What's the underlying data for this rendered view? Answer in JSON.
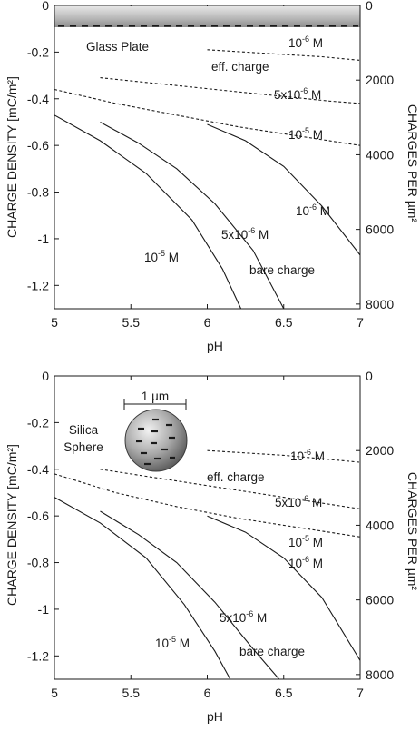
{
  "chart_data": [
    {
      "type": "line",
      "inset": {
        "text": "Glass Plate"
      },
      "xlabel": "pH",
      "ylabel": "CHARGE DENSITY [mC/m²]",
      "y2label": "CHARGES PER µm²",
      "xlim": [
        5,
        7
      ],
      "ylim": [
        -1.3,
        0
      ],
      "y2lim": [
        0,
        8125
      ],
      "xticks": [
        "5",
        "5.5",
        "6",
        "6.5",
        "7"
      ],
      "yticks": [
        "0",
        "-0.2",
        "-0.4",
        "-0.6",
        "-0.8",
        "-1",
        "-1.2"
      ],
      "y2ticks": [
        "0",
        "2000",
        "4000",
        "6000",
        "8000"
      ],
      "series": [
        {
          "name": "10-6 M",
          "group": "eff. charge",
          "style": "dashed",
          "x": [
            6.0,
            6.25,
            6.5,
            6.75,
            7.0
          ],
          "y": [
            -0.19,
            -0.2,
            -0.21,
            -0.22,
            -0.235
          ]
        },
        {
          "name": "5x10-6 M",
          "group": "eff. charge",
          "style": "dashed",
          "x": [
            5.3,
            5.6,
            5.9,
            6.2,
            6.5,
            6.8,
            7.0
          ],
          "y": [
            -0.31,
            -0.33,
            -0.35,
            -0.37,
            -0.39,
            -0.41,
            -0.42
          ]
        },
        {
          "name": "10-5 M",
          "group": "eff. charge",
          "style": "dashed",
          "x": [
            5.0,
            5.4,
            5.8,
            6.2,
            6.6,
            7.0
          ],
          "y": [
            -0.36,
            -0.42,
            -0.47,
            -0.52,
            -0.56,
            -0.6
          ]
        },
        {
          "name": "10-6 M",
          "group": "bare charge",
          "style": "solid",
          "x": [
            6.0,
            6.25,
            6.5,
            6.75,
            7.0
          ],
          "y": [
            -0.51,
            -0.58,
            -0.69,
            -0.86,
            -1.07
          ]
        },
        {
          "name": "5x10-6 M",
          "group": "bare charge",
          "style": "solid",
          "x": [
            5.3,
            5.55,
            5.8,
            6.05,
            6.3,
            6.5
          ],
          "y": [
            -0.5,
            -0.59,
            -0.7,
            -0.85,
            -1.05,
            -1.3
          ]
        },
        {
          "name": "10-5 M",
          "group": "bare charge",
          "style": "solid",
          "x": [
            5.0,
            5.3,
            5.6,
            5.9,
            6.1,
            6.22
          ],
          "y": [
            -0.47,
            -0.58,
            -0.72,
            -0.92,
            -1.13,
            -1.3
          ]
        }
      ],
      "labels": {
        "eff_charge": "eff. charge",
        "bare_charge": "bare charge",
        "c1_base": "10",
        "c1_exp": "-6",
        "c1_unit": " M",
        "c2_base": "5x10",
        "c2_exp": "-6",
        "c2_unit": " M",
        "c3_base": "10",
        "c3_exp": "-5",
        "c3_unit": " M"
      }
    },
    {
      "type": "line",
      "inset": {
        "text_line1": "Silica",
        "text_line2": "Sphere",
        "scale_label": "1 µm"
      },
      "xlabel": "pH",
      "ylabel": "CHARGE DENSITY [mC/m²]",
      "y2label": "CHARGES PER µm²",
      "xlim": [
        5,
        7
      ],
      "ylim": [
        -1.3,
        0
      ],
      "y2lim": [
        0,
        8125
      ],
      "xticks": [
        "5",
        "5.5",
        "6",
        "6.5",
        "7"
      ],
      "yticks": [
        "0",
        "-0.2",
        "-0.4",
        "-0.6",
        "-0.8",
        "-1",
        "-1.2"
      ],
      "y2ticks": [
        "0",
        "2000",
        "4000",
        "6000",
        "8000"
      ],
      "series": [
        {
          "name": "10-6 M",
          "group": "eff. charge",
          "style": "dashed",
          "x": [
            6.0,
            6.25,
            6.5,
            6.75,
            7.0
          ],
          "y": [
            -0.32,
            -0.33,
            -0.34,
            -0.355,
            -0.37
          ]
        },
        {
          "name": "5x10-6 M",
          "group": "eff. charge",
          "style": "dashed",
          "x": [
            5.3,
            5.6,
            5.9,
            6.2,
            6.5,
            6.8,
            7.0
          ],
          "y": [
            -0.4,
            -0.43,
            -0.46,
            -0.49,
            -0.52,
            -0.55,
            -0.57
          ]
        },
        {
          "name": "10-5 M",
          "group": "eff. charge",
          "style": "dashed",
          "x": [
            5.0,
            5.4,
            5.8,
            6.2,
            6.6,
            7.0
          ],
          "y": [
            -0.42,
            -0.5,
            -0.56,
            -0.61,
            -0.65,
            -0.69
          ]
        },
        {
          "name": "10-6 M",
          "group": "bare charge",
          "style": "solid",
          "x": [
            6.0,
            6.25,
            6.5,
            6.75,
            7.0
          ],
          "y": [
            -0.6,
            -0.67,
            -0.78,
            -0.95,
            -1.22
          ]
        },
        {
          "name": "5x10-6 M",
          "group": "bare charge",
          "style": "solid",
          "x": [
            5.3,
            5.55,
            5.8,
            6.05,
            6.3,
            6.47
          ],
          "y": [
            -0.58,
            -0.68,
            -0.8,
            -0.97,
            -1.17,
            -1.3
          ]
        },
        {
          "name": "10-5 M",
          "group": "bare charge",
          "style": "solid",
          "x": [
            5.0,
            5.3,
            5.6,
            5.85,
            6.05,
            6.15
          ],
          "y": [
            -0.52,
            -0.63,
            -0.78,
            -0.98,
            -1.18,
            -1.3
          ]
        }
      ],
      "labels": {
        "eff_charge": "eff. charge",
        "bare_charge": "bare charge",
        "c1_base": "10",
        "c1_exp": "-6",
        "c1_unit": " M",
        "c2_base": "5x10",
        "c2_exp": "-6",
        "c2_unit": " M",
        "c3_base": "10",
        "c3_exp": "-5",
        "c3_unit": " M"
      }
    }
  ]
}
